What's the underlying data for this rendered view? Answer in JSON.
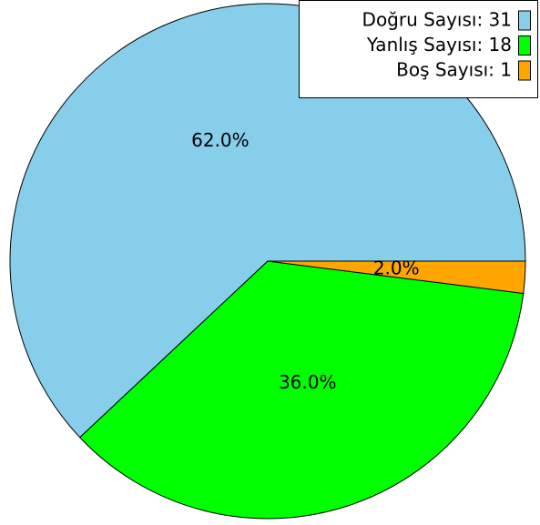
{
  "chart_data": {
    "type": "pie",
    "categories": [
      "Doğru Sayısı: 31",
      "Yanlış Sayısı: 18",
      "Boş Sayısı: 1"
    ],
    "values": [
      62,
      36,
      2
    ],
    "value_labels": [
      "62.0%",
      "36.0%",
      "2.0%"
    ],
    "colors": [
      "#87ceeb",
      "#00ff00",
      "#ffa500"
    ],
    "legend": "upper right"
  }
}
